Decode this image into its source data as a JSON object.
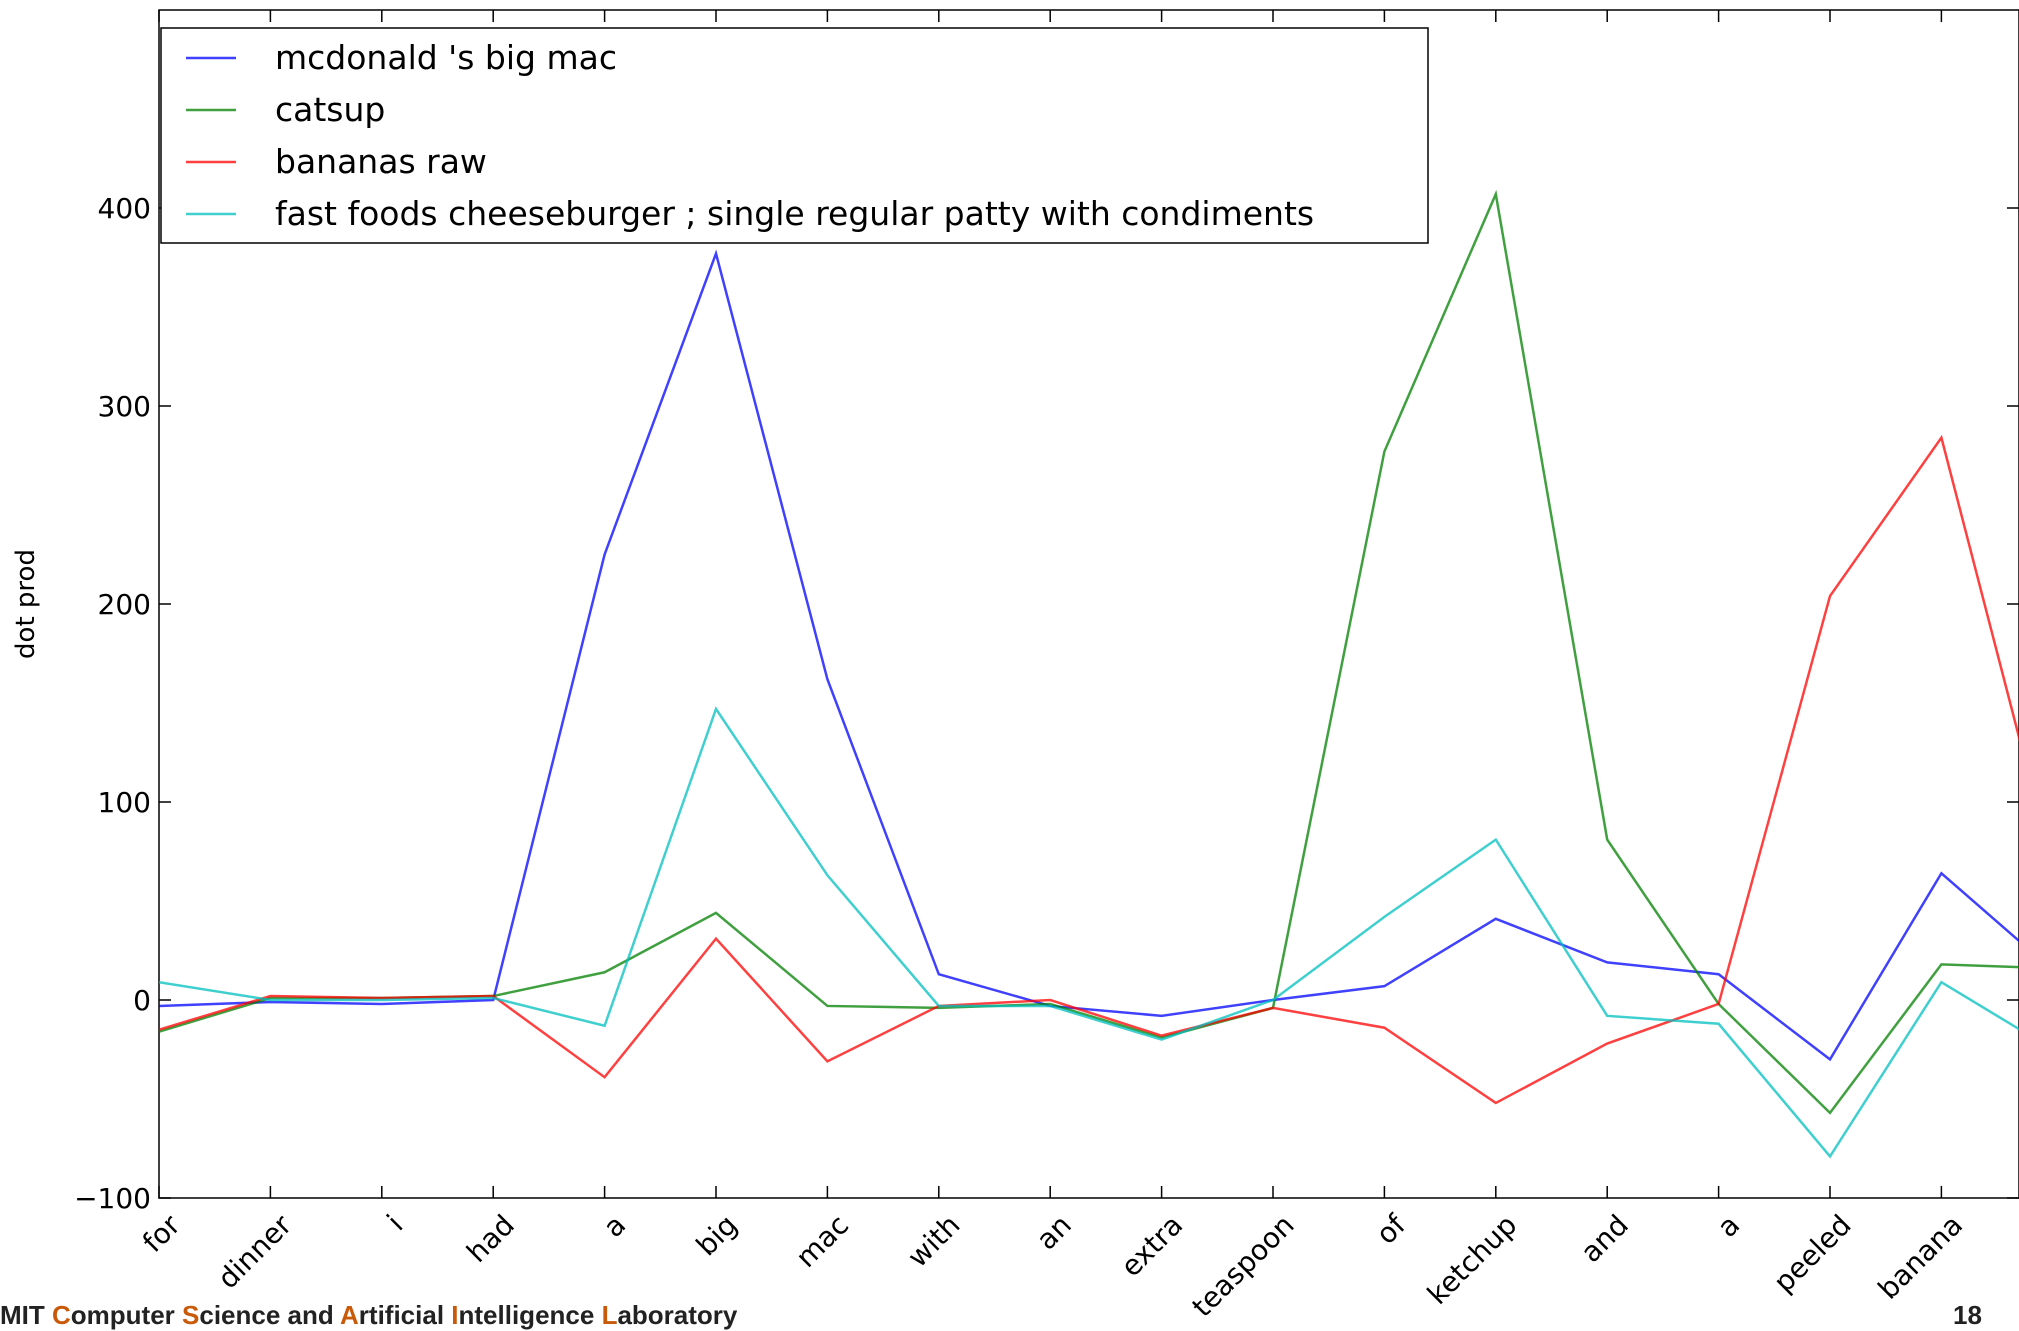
{
  "chart_data": {
    "type": "line",
    "title": "",
    "xlabel": "",
    "ylabel": "dot prod",
    "ylim": [
      -100,
      500
    ],
    "yticks": [
      -100,
      0,
      100,
      200,
      300,
      400
    ],
    "ytick_labels": [
      "−100",
      "0",
      "100",
      "200",
      "300",
      "400"
    ],
    "categories": [
      "for",
      "dinner",
      "i",
      "had",
      "a",
      "big",
      "mac",
      "with",
      "an",
      "extra",
      "teaspoon",
      "of",
      "ketchup",
      "and",
      "a",
      "peeled",
      "banana",
      "."
    ],
    "legend_position": "top-left",
    "grid": false,
    "series": [
      {
        "name": "mcdonald 's big mac",
        "color": "#0000ff",
        "values": [
          -3,
          -1,
          -2,
          0,
          225,
          377,
          162,
          13,
          -3,
          -8,
          0,
          7,
          41,
          19,
          13,
          -30,
          64,
          15
        ]
      },
      {
        "name": "catsup",
        "color": "#008000",
        "values": [
          -16,
          1,
          1,
          2,
          14,
          44,
          -3,
          -4,
          -2,
          -19,
          -4,
          277,
          407,
          81,
          -2,
          -57,
          18,
          16
        ]
      },
      {
        "name": "bananas raw",
        "color": "#ff0000",
        "values": [
          -15,
          2,
          1,
          2,
          -39,
          31,
          -31,
          -3,
          0,
          -18,
          -4,
          -14,
          -52,
          -22,
          -2,
          204,
          284,
          67
        ]
      },
      {
        "name": "fast foods cheeseburger ; single regular patty with condiments",
        "color": "#00bfbf",
        "values": [
          9,
          0,
          0,
          1,
          -13,
          147,
          63,
          -3,
          -3,
          -20,
          0,
          42,
          81,
          -8,
          -12,
          -79,
          9,
          -25
        ]
      }
    ]
  },
  "footer": {
    "parts": [
      {
        "text": "MIT ",
        "hl": false
      },
      {
        "text": "C",
        "hl": true
      },
      {
        "text": "omputer ",
        "hl": false
      },
      {
        "text": "S",
        "hl": true
      },
      {
        "text": "cience and ",
        "hl": false
      },
      {
        "text": "A",
        "hl": true
      },
      {
        "text": "rtificial ",
        "hl": false
      },
      {
        "text": "I",
        "hl": true
      },
      {
        "text": "ntelligence ",
        "hl": false
      },
      {
        "text": "L",
        "hl": true
      },
      {
        "text": "aboratory",
        "hl": false
      }
    ],
    "page_number": "18"
  }
}
